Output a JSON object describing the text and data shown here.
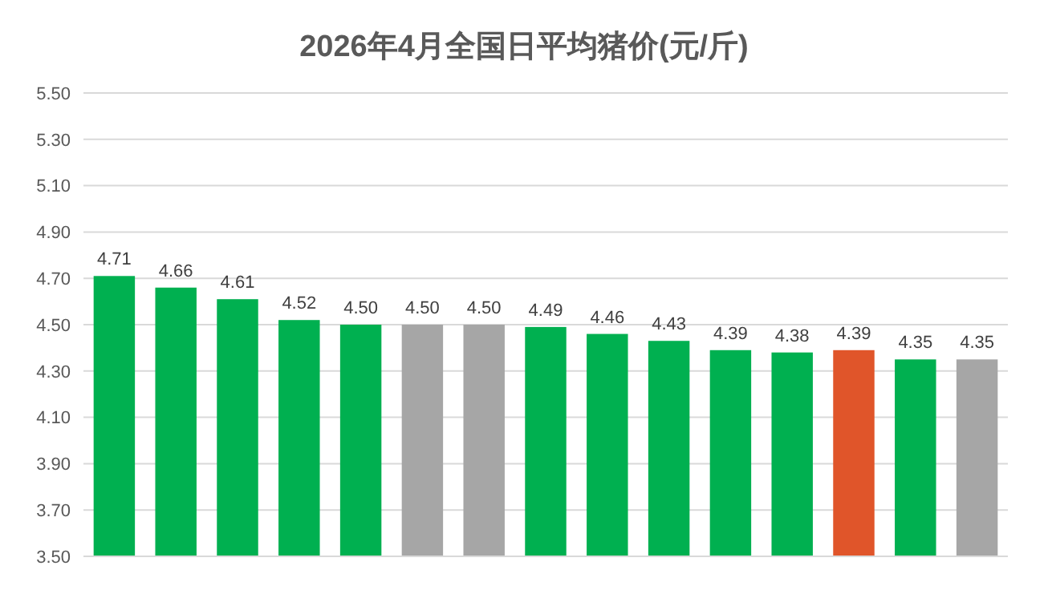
{
  "chart_data": {
    "type": "bar",
    "title": "2026年4月全国日平均猪价(元/斤)",
    "categories": [
      null,
      null,
      null,
      null,
      null,
      null,
      null,
      null,
      null,
      null,
      null,
      null,
      null,
      null,
      null
    ],
    "values": [
      4.71,
      4.66,
      4.61,
      4.52,
      4.5,
      4.5,
      4.5,
      4.49,
      4.46,
      4.43,
      4.39,
      4.38,
      4.39,
      4.35,
      4.35
    ],
    "value_labels": [
      "4.71",
      "4.66",
      "4.61",
      "4.52",
      "4.50",
      "4.50",
      "4.50",
      "4.49",
      "4.46",
      "4.43",
      "4.39",
      "4.38",
      "4.39",
      "4.35",
      "4.35"
    ],
    "colors": [
      "#00b050",
      "#00b050",
      "#00b050",
      "#00b050",
      "#00b050",
      "#a6a6a6",
      "#a6a6a6",
      "#00b050",
      "#00b050",
      "#00b050",
      "#00b050",
      "#00b050",
      "#e0552a",
      "#00b050",
      "#a6a6a6"
    ],
    "ylim": [
      3.5,
      5.5
    ],
    "yticks": [
      {
        "value": 3.5,
        "label": "3.50"
      },
      {
        "value": 3.7,
        "label": "3.70"
      },
      {
        "value": 3.9,
        "label": "3.90"
      },
      {
        "value": 4.1,
        "label": "4.10"
      },
      {
        "value": 4.3,
        "label": "4.30"
      },
      {
        "value": 4.5,
        "label": "4.50"
      },
      {
        "value": 4.7,
        "label": "4.70"
      },
      {
        "value": 4.9,
        "label": "4.90"
      },
      {
        "value": 5.1,
        "label": "5.10"
      },
      {
        "value": 5.3,
        "label": "5.30"
      },
      {
        "value": 5.5,
        "label": "5.50"
      }
    ],
    "grid": "y"
  }
}
